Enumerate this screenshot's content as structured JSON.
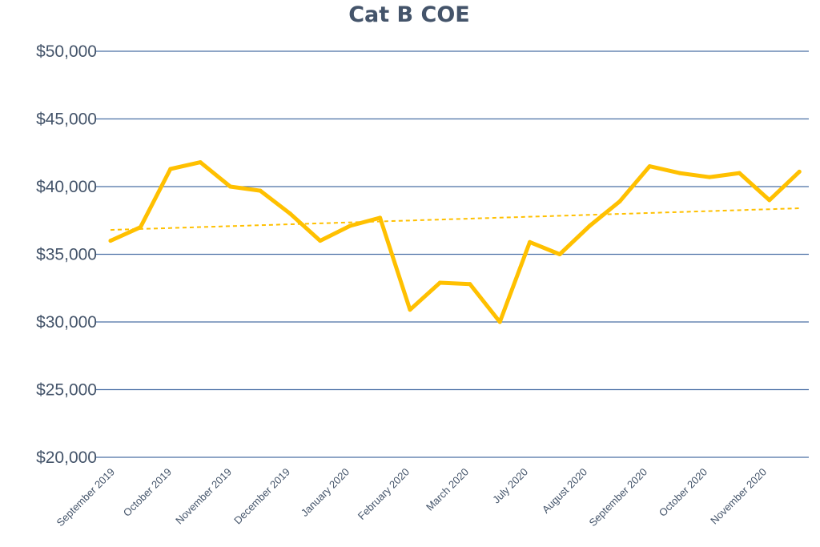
{
  "chart_data": {
    "type": "line",
    "title": "Cat B COE",
    "xlabel": "",
    "ylabel": "",
    "y_ticks": [
      "$50,000",
      "$45,000",
      "$40,000",
      "$35,000",
      "$30,000",
      "$25,000",
      "$20,000"
    ],
    "ylim": [
      20000,
      50000
    ],
    "y_tick_step": 5000,
    "grid": true,
    "legend": "none",
    "x_tick_labels": [
      "September 2019",
      "October 2019",
      "November 2019",
      "December 2019",
      "January 2020",
      "February 2020",
      "March 2020",
      "July 2020",
      "August 2020",
      "September 2020",
      "October 2020",
      "November 2020"
    ],
    "series": [
      {
        "color": "#FFC000",
        "values": [
          36000,
          37000,
          41300,
          41800,
          40000,
          39700,
          38000,
          36000,
          37100,
          37700,
          30900,
          32900,
          32800,
          30000,
          35900,
          35000,
          37100,
          38900,
          41500,
          41000,
          40700,
          41000,
          39000,
          41100
        ]
      }
    ],
    "trendline": {
      "style": "dashed",
      "color": "#FFC000",
      "start": 36800,
      "end": 38400
    }
  }
}
